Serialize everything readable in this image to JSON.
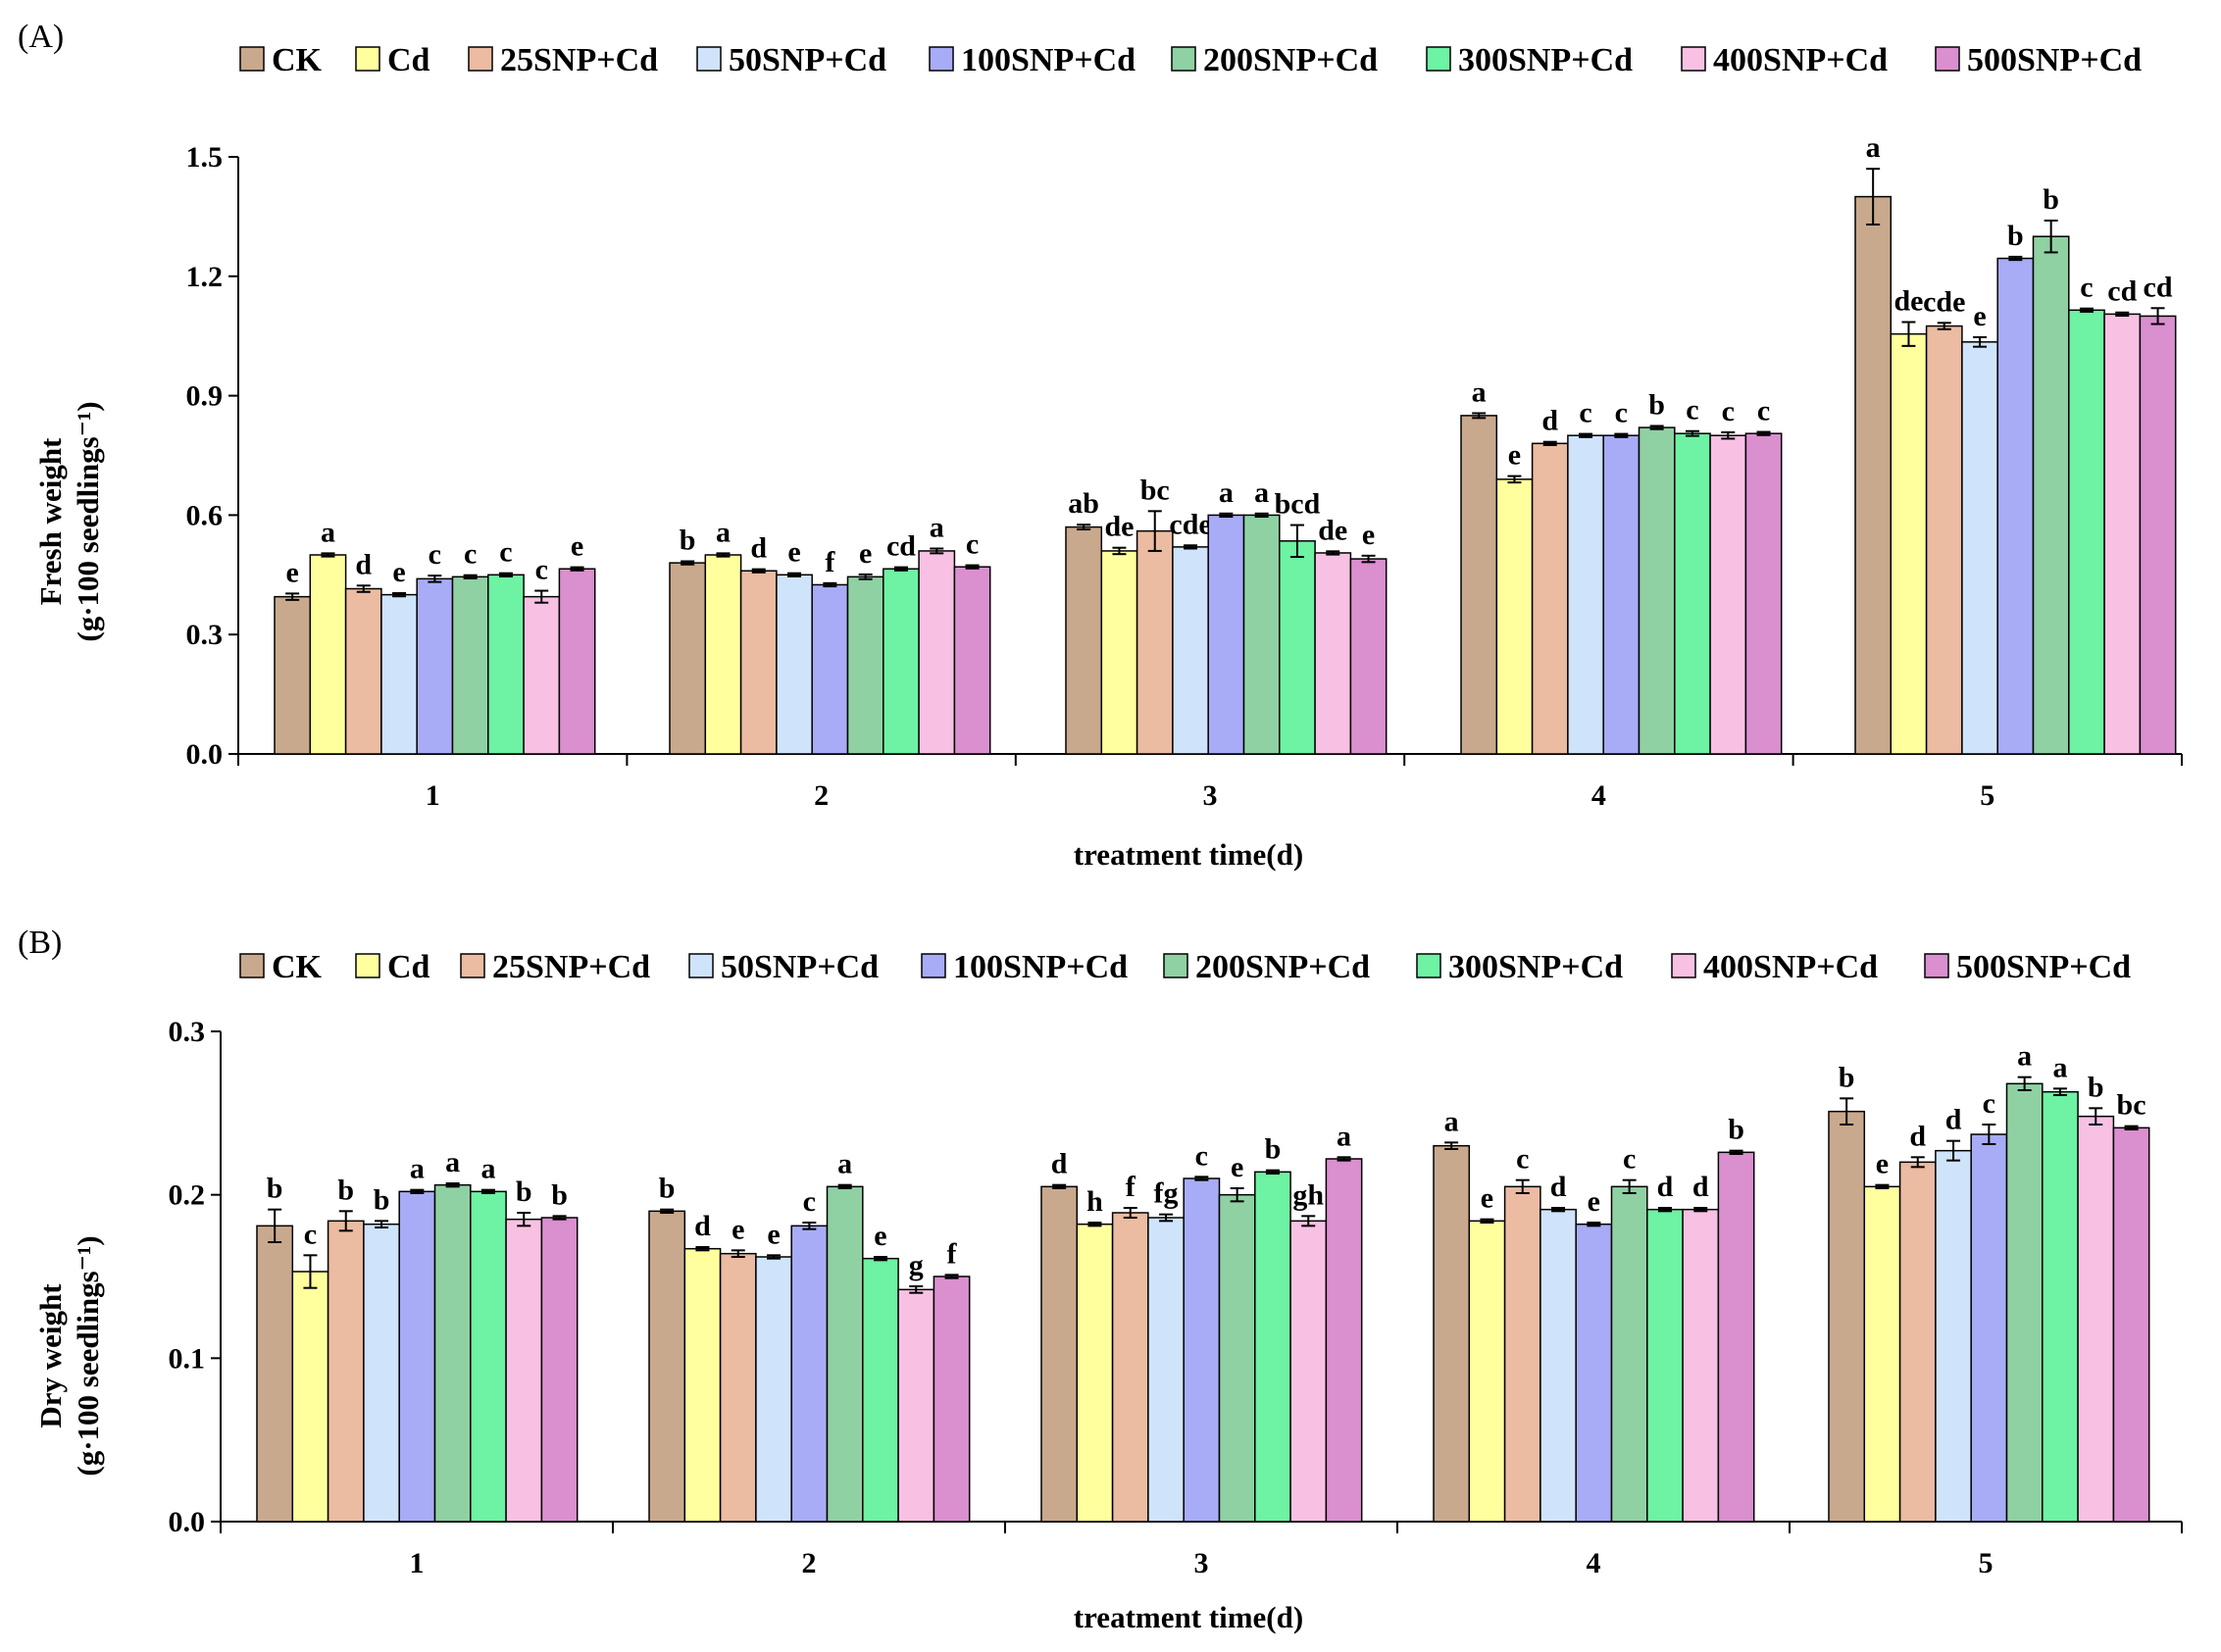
{
  "chart_data": [
    {
      "panel_label": "(A)",
      "type": "bar",
      "xlabel": "treatment time(d)",
      "ylabel_line1": "Fresh weight",
      "ylabel_line2": "(g·100 seedlings⁻¹)",
      "categories": [
        "1",
        "2",
        "3",
        "4",
        "5"
      ],
      "ylim": [
        0,
        1.5
      ],
      "yticks": [
        "0.0",
        "0.3",
        "0.6",
        "0.9",
        "1.2",
        "1.5"
      ],
      "series": [
        {
          "name": "CK",
          "values": [
            0.395,
            0.48,
            0.57,
            0.85,
            1.4
          ],
          "errors": [
            0.008,
            0.004,
            0.006,
            0.006,
            0.07
          ],
          "letters": [
            "e",
            "b",
            "ab",
            "a",
            "a"
          ]
        },
        {
          "name": "Cd",
          "values": [
            0.5,
            0.5,
            0.51,
            0.69,
            1.055
          ],
          "errors": [
            0.004,
            0.004,
            0.008,
            0.008,
            0.03
          ],
          "letters": [
            "a",
            "a",
            "de",
            "e",
            "de"
          ]
        },
        {
          "name": "25SNP+Cd",
          "values": [
            0.415,
            0.46,
            0.56,
            0.78,
            1.075
          ],
          "errors": [
            0.008,
            0.004,
            0.05,
            0.004,
            0.008
          ],
          "letters": [
            "d",
            "d",
            "bc",
            "d",
            "cde"
          ]
        },
        {
          "name": "50SNP+Cd",
          "values": [
            0.4,
            0.45,
            0.52,
            0.8,
            1.035
          ],
          "errors": [
            0.004,
            0.004,
            0.004,
            0.004,
            0.012
          ],
          "letters": [
            "e",
            "e",
            "cde",
            "c",
            "e"
          ]
        },
        {
          "name": "100SNP+Cd",
          "values": [
            0.44,
            0.425,
            0.6,
            0.8,
            1.245
          ],
          "errors": [
            0.008,
            0.004,
            0.004,
            0.004,
            0.004
          ],
          "letters": [
            "c",
            "f",
            "a",
            "c",
            "b"
          ]
        },
        {
          "name": "200SNP+Cd",
          "values": [
            0.445,
            0.445,
            0.6,
            0.82,
            1.3
          ],
          "errors": [
            0.004,
            0.006,
            0.004,
            0.004,
            0.04
          ],
          "letters": [
            "c",
            "e",
            "a",
            "b",
            "b"
          ]
        },
        {
          "name": "300SNP+Cd",
          "values": [
            0.45,
            0.465,
            0.535,
            0.805,
            1.115
          ],
          "errors": [
            0.004,
            0.004,
            0.04,
            0.006,
            0.004
          ],
          "letters": [
            "c",
            "cd",
            "bcd",
            "c",
            "c"
          ]
        },
        {
          "name": "400SNP+Cd",
          "values": [
            0.395,
            0.51,
            0.505,
            0.8,
            1.105
          ],
          "errors": [
            0.015,
            0.006,
            0.004,
            0.008,
            0.004
          ],
          "letters": [
            "c",
            "a",
            "de",
            "c",
            "cd"
          ]
        },
        {
          "name": "500SNP+Cd",
          "values": [
            0.465,
            0.47,
            0.49,
            0.805,
            1.1
          ],
          "errors": [
            0.004,
            0.004,
            0.008,
            0.004,
            0.02
          ],
          "letters": [
            "e",
            "c",
            "e",
            "c",
            "cd"
          ]
        }
      ]
    },
    {
      "panel_label": "(B)",
      "type": "bar",
      "xlabel": "treatment time(d)",
      "ylabel_line1": "Dry weight",
      "ylabel_line2": "(g·100 seedlings⁻¹)",
      "categories": [
        "1",
        "2",
        "3",
        "4",
        "5"
      ],
      "ylim": [
        0,
        0.3
      ],
      "yticks": [
        "0.0",
        "0.1",
        "0.2",
        "0.3"
      ],
      "series": [
        {
          "name": "CK",
          "values": [
            0.181,
            0.19,
            0.205,
            0.23,
            0.251
          ],
          "errors": [
            0.01,
            0.001,
            0.001,
            0.002,
            0.008
          ],
          "letters": [
            "b",
            "b",
            "d",
            "a",
            "b"
          ]
        },
        {
          "name": "Cd",
          "values": [
            0.153,
            0.167,
            0.182,
            0.184,
            0.205
          ],
          "errors": [
            0.01,
            0.001,
            0.001,
            0.001,
            0.001
          ],
          "letters": [
            "c",
            "d",
            "h",
            "e",
            "e"
          ]
        },
        {
          "name": "25SNP+Cd",
          "values": [
            0.184,
            0.164,
            0.189,
            0.205,
            0.22
          ],
          "errors": [
            0.006,
            0.002,
            0.003,
            0.004,
            0.003
          ],
          "letters": [
            "b",
            "e",
            "f",
            "c",
            "d"
          ]
        },
        {
          "name": "50SNP+Cd",
          "values": [
            0.182,
            0.162,
            0.186,
            0.191,
            0.227
          ],
          "errors": [
            0.002,
            0.001,
            0.002,
            0.001,
            0.006
          ],
          "letters": [
            "b",
            "e",
            "fg",
            "d",
            "d"
          ]
        },
        {
          "name": "100SNP+Cd",
          "values": [
            0.202,
            0.181,
            0.21,
            0.182,
            0.237
          ],
          "errors": [
            0.001,
            0.002,
            0.001,
            0.001,
            0.006
          ],
          "letters": [
            "a",
            "c",
            "c",
            "e",
            "c"
          ]
        },
        {
          "name": "200SNP+Cd",
          "values": [
            0.206,
            0.205,
            0.2,
            0.205,
            0.268
          ],
          "errors": [
            0.001,
            0.001,
            0.004,
            0.004,
            0.004
          ],
          "letters": [
            "a",
            "a",
            "e",
            "c",
            "a"
          ]
        },
        {
          "name": "300SNP+Cd",
          "values": [
            0.202,
            0.161,
            0.214,
            0.191,
            0.263
          ],
          "errors": [
            0.001,
            0.001,
            0.001,
            0.001,
            0.002
          ],
          "letters": [
            "a",
            "e",
            "b",
            "d",
            "a"
          ]
        },
        {
          "name": "400SNP+Cd",
          "values": [
            0.185,
            0.142,
            0.184,
            0.191,
            0.248
          ],
          "errors": [
            0.004,
            0.002,
            0.003,
            0.001,
            0.005
          ],
          "letters": [
            "b",
            "g",
            "gh",
            "d",
            "b"
          ]
        },
        {
          "name": "500SNP+Cd",
          "values": [
            0.186,
            0.15,
            0.222,
            0.226,
            0.241
          ],
          "errors": [
            0.001,
            0.001,
            0.001,
            0.001,
            0.001
          ],
          "letters": [
            "b",
            "f",
            "a",
            "b",
            "bc"
          ]
        }
      ]
    }
  ],
  "colors": {
    "CK": "#c9a98d",
    "Cd": "#ffff9e",
    "25SNP+Cd": "#ebbba2",
    "50SNP+Cd": "#cfe4fb",
    "100SNP+Cd": "#a8acf6",
    "200SNP+Cd": "#8fd1a3",
    "300SNP+Cd": "#6ef2a3",
    "400SNP+Cd": "#f8c1e4",
    "500SNP+Cd": "#da8fcf",
    "bar_stroke": "#000000"
  }
}
